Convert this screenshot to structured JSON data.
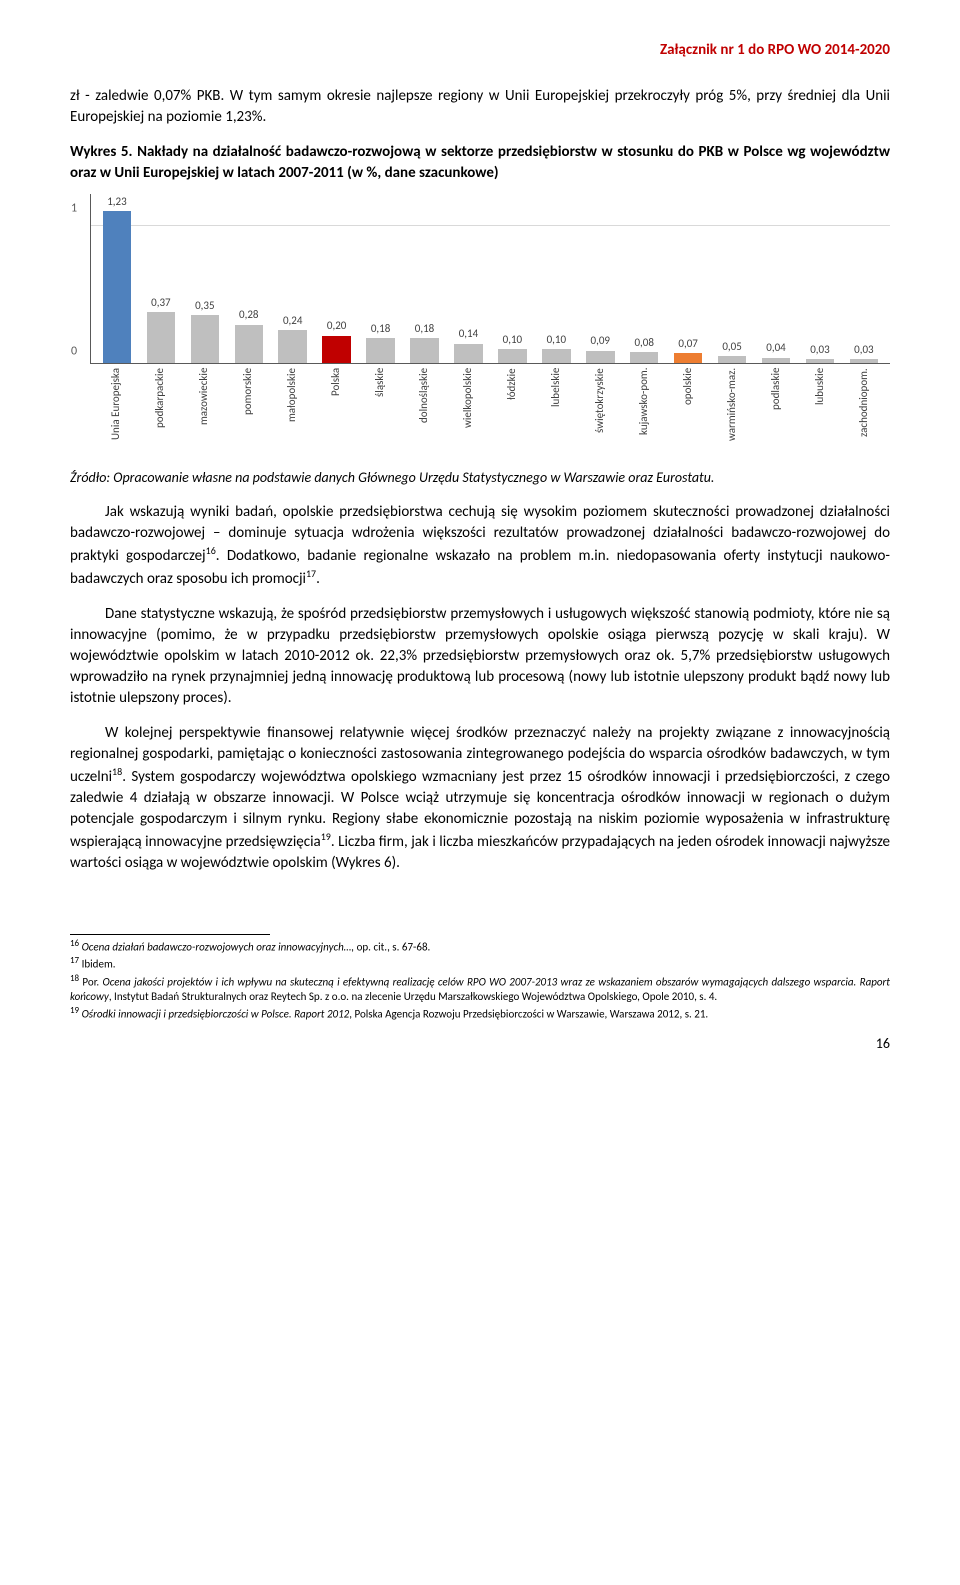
{
  "header": {
    "attachment_line": "Załącznik nr 1 do RPO WO 2014-2020"
  },
  "intro": {
    "p1": "zł - zaledwie 0,07% PKB. W tym samym okresie najlepsze regiony w Unii Europejskiej przekroczyły próg 5%, przy średniej dla Unii Europejskiej na poziomie 1,23%."
  },
  "chart": {
    "label": "Wykres 5.",
    "title": " Nakłady na działalność badawczo-rozwojową w sektorze przedsiębiorstw w stosunku do PKB w Polsce wg województw oraz w Unii Europejskiej w latach 2007-2011 (w %, dane szacunkowe)",
    "type": "bar",
    "ylim_max": 1.23,
    "y_ticks": [
      0,
      1
    ],
    "first_bar_value": 1.23,
    "categories": [
      "Unia Europejska",
      "podkarpackie",
      "mazowieckie",
      "pomorskie",
      "małopolskie",
      "Polska",
      "śląskie",
      "dolnośląskie",
      "wielkopolskie",
      "łódzkie",
      "lubelskie",
      "świętokrzyskie",
      "kujawsko-pom.",
      "opolskie",
      "warmińsko-maz.",
      "podlaskie",
      "lubuskie",
      "zachodniopom."
    ],
    "values": [
      1.23,
      0.37,
      0.35,
      0.28,
      0.24,
      0.2,
      0.18,
      0.18,
      0.14,
      0.1,
      0.1,
      0.09,
      0.08,
      0.07,
      0.05,
      0.04,
      0.03,
      0.03
    ],
    "value_labels": [
      "1,23",
      "0,37",
      "0,35",
      "0,28",
      "0,24",
      "0,20",
      "0,18",
      "0,18",
      "0,14",
      "0,10",
      "0,10",
      "0,09",
      "0,08",
      "0,07",
      "0,05",
      "0,04",
      "0,03",
      "0,03"
    ],
    "bar_colors": [
      "#4f81bd",
      "#bfbfbf",
      "#bfbfbf",
      "#bfbfbf",
      "#bfbfbf",
      "#c00000",
      "#bfbfbf",
      "#bfbfbf",
      "#bfbfbf",
      "#bfbfbf",
      "#bfbfbf",
      "#bfbfbf",
      "#bfbfbf",
      "#ed7d31",
      "#bfbfbf",
      "#bfbfbf",
      "#bfbfbf",
      "#bfbfbf"
    ],
    "background_color": "#ffffff",
    "grid_color": "#d9d9d9",
    "label_fontsize": 11
  },
  "source": "Źródło: Opracowanie własne na podstawie danych Głównego Urzędu Statystycznego w Warszawie oraz Eurostatu.",
  "body": {
    "p2_a": "Jak wskazują wyniki badań, opolskie przedsiębiorstwa cechują się wysokim poziomem skuteczności prowadzonej działalności badawczo-rozwojowej – dominuje sytuacja wdrożenia większości rezultatów prowadzonej działalności badawczo-rozwojowej do praktyki gospodarczej",
    "p2_ref1": "16",
    "p2_b": ". Dodatkowo, badanie regionalne wskazało na problem m.in. niedopasowania oferty instytucji naukowo-badawczych oraz sposobu ich promocji",
    "p2_ref2": "17",
    "p2_c": ".",
    "p3": "Dane statystyczne wskazują, że spośród przedsiębiorstw przemysłowych i usługowych większość stanowią podmioty, które nie są innowacyjne (pomimo, że w przypadku przedsiębiorstw przemysłowych opolskie osiąga pierwszą pozycję w skali kraju). W województwie opolskim w latach 2010-2012 ok. 22,3% przedsiębiorstw przemysłowych oraz ok. 5,7% przedsiębiorstw usługowych wprowadziło na rynek przynajmniej jedną innowację produktową lub procesową (nowy lub istotnie ulepszony produkt bądź nowy lub istotnie ulepszony proces).",
    "p4_a": "W kolejnej perspektywie finansowej relatywnie więcej środków przeznaczyć należy na projekty związane z innowacyjnością regionalnej gospodarki, pamiętając o konieczności zastosowania zintegrowanego podejścia do wsparcia ośrodków badawczych, w tym uczelni",
    "p4_ref1": "18",
    "p4_b": ". System gospodarczy województwa opolskiego wzmacniany jest przez 15 ośrodków innowacji i przedsiębiorczości, z czego zaledwie 4 działają w obszarze innowacji. W Polsce wciąż utrzymuje się koncentracja ośrodków innowacji w regionach o dużym potencjale gospodarczym i silnym rynku. Regiony słabe ekonomicznie pozostają na niskim poziomie wyposażenia w infrastrukturę wspierającą innowacyjne przedsięwzięcia",
    "p4_ref2": "19",
    "p4_c": ". Liczba firm, jak i liczba mieszkańców przypadających na jeden ośrodek innowacji najwyższe wartości osiąga w województwie opolskim (Wykres 6)."
  },
  "footnotes": {
    "f16": {
      "num": "16",
      "text_i": " Ocena działań badawczo-rozwojowych oraz innowacyjnych…,",
      "text_r": " op. cit., s. 67-68."
    },
    "f17": {
      "num": "17",
      "text": " Ibidem."
    },
    "f18": {
      "num": "18",
      "text_a": " Por. ",
      "text_i1": "Ocena jakości projektów i ich wpływu na skuteczną i efektywną realizację celów RPO WO 2007-2013 wraz ze wskazaniem obszarów wymagających dalszego wsparcia. Raport końcowy",
      "text_b": ", Instytut Badań Strukturalnych oraz Reytech Sp. z o.o. na zlecenie Urzędu Marszałkowskiego Województwa Opolskiego, Opole 2010, s. 4."
    },
    "f19": {
      "num": "19",
      "text_i": " Ośrodki innowacji i przedsiębiorczości w Polsce. Raport 2012",
      "text_r": ", Polska Agencja Rozwoju Przedsiębiorczości w Warszawie, Warszawa 2012, s. 21."
    }
  },
  "page_number": "16"
}
